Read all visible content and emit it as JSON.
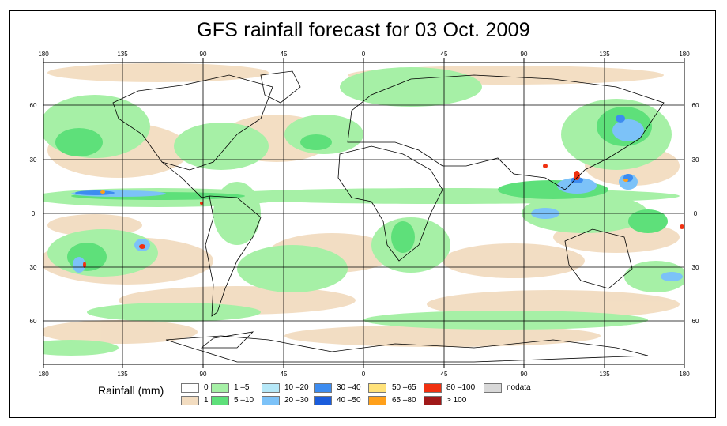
{
  "title": "GFS rainfall forecast for 03 Oct. 2009",
  "axes": {
    "top_lon_labels": [
      "180",
      "135",
      "90",
      "45",
      "0",
      "45",
      "90",
      "135",
      "180"
    ],
    "bottom_lon_labels": [
      "180",
      "135",
      "90",
      "45",
      "0",
      "45",
      "90",
      "135",
      "180"
    ],
    "left_lat_labels": [
      "60",
      "30",
      "0",
      "30",
      "60"
    ],
    "right_lat_labels": [
      "60",
      "30",
      "0",
      "30",
      "60"
    ]
  },
  "legend": {
    "title": "Rainfall (mm)",
    "items": [
      {
        "label": "0",
        "color": "#ffffff"
      },
      {
        "label": "1",
        "color": "#f2dcc0"
      },
      {
        "label": "1 –5",
        "color": "#a6f0a6"
      },
      {
        "label": "5 –10",
        "color": "#5ee07a"
      },
      {
        "label": "10 –20",
        "color": "#b6e8f8"
      },
      {
        "label": "20 –30",
        "color": "#7cc2f8"
      },
      {
        "label": "30 –40",
        "color": "#3d8cf0"
      },
      {
        "label": "40 –50",
        "color": "#1a5cdc"
      },
      {
        "label": "50 –65",
        "color": "#ffe27a"
      },
      {
        "label": "65 –80",
        "color": "#ffa01a"
      },
      {
        "label": "80 –100",
        "color": "#f03010"
      },
      {
        "label": "> 100",
        "color": "#a01818"
      },
      {
        "label": "nodata",
        "color": "#d8d8d8"
      }
    ]
  }
}
